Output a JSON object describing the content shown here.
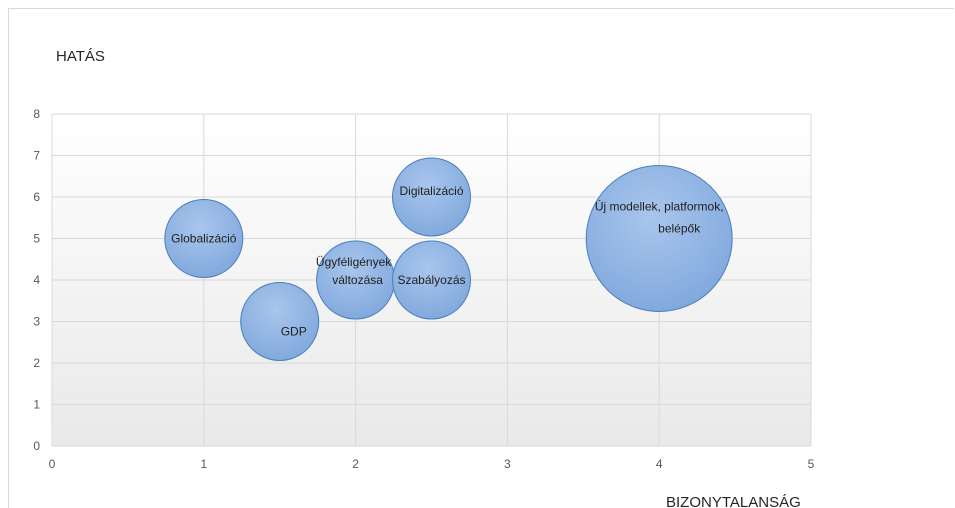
{
  "chart_data": {
    "type": "scatter",
    "title": "",
    "ylabel": "HATÁS",
    "xlabel": "BIZONYTALANSÁG",
    "xlim": [
      0,
      5
    ],
    "ylim": [
      0,
      8
    ],
    "xticks": [
      "0",
      "1",
      "2",
      "3",
      "4",
      "5"
    ],
    "yticks": [
      "0",
      "1",
      "2",
      "3",
      "4",
      "5",
      "6",
      "7",
      "8"
    ],
    "grid": true,
    "bubble_color": "#8fb4e3",
    "bubble_edge": "#4a7ebb",
    "points": [
      {
        "label": "Globalizáció",
        "x": 1,
        "y": 5,
        "size": 1
      },
      {
        "label": "GDP",
        "x": 1.5,
        "y": 3,
        "size": 1
      },
      {
        "label": "Ügyféligények változása",
        "x": 2,
        "y": 4,
        "size": 1
      },
      {
        "label": "Digitalizáció",
        "x": 2.5,
        "y": 6,
        "size": 1
      },
      {
        "label": "Szabályozás",
        "x": 2.5,
        "y": 4,
        "size": 1
      },
      {
        "label": "Új modellek, platformok, belépők",
        "x": 4,
        "y": 5,
        "size": 3.5
      }
    ]
  }
}
